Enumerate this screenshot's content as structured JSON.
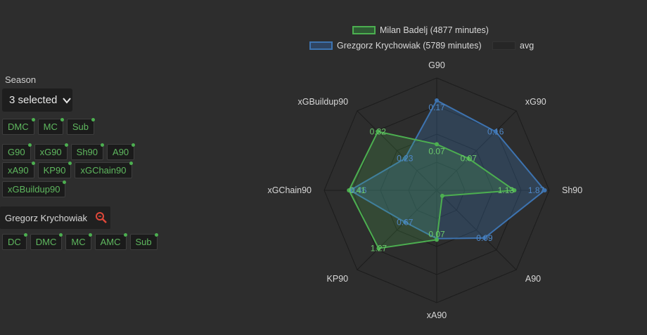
{
  "filters": {
    "season_label": "Season",
    "season_value": "3 selected",
    "position_chips_1": [
      "DMC",
      "MC",
      "Sub"
    ],
    "stat_chips_row1": [
      "G90",
      "xG90",
      "Sh90",
      "A90"
    ],
    "stat_chips_row2": [
      "xA90",
      "KP90",
      "xGChain90"
    ],
    "stat_chips_row3": [
      "xGBuildup90"
    ],
    "player_search": "Gregorz Krychowiak",
    "position_chips_2": [
      "DC",
      "DMC",
      "MC",
      "AMC",
      "Sub"
    ]
  },
  "colors": {
    "series1": "#4caf50",
    "series2": "#3d73b0",
    "chip_text": "#5fb85f",
    "background": "#2d2d2d"
  },
  "chart_data": {
    "type": "radar",
    "axes": [
      "G90",
      "xG90",
      "Sh90",
      "A90",
      "xA90",
      "KP90",
      "xGChain90",
      "xGBuildup90"
    ],
    "series": [
      {
        "name": "Milan Badelj (4877 minutes)",
        "color": "#4caf50",
        "normalized": [
          0.41,
          0.4,
          0.69,
          0.07,
          0.44,
          0.73,
          0.78,
          0.74
        ],
        "labels": [
          "0.07",
          "0.07",
          "1.13",
          "",
          "0.07",
          "1.27",
          "0.41",
          "0.32"
        ]
      },
      {
        "name": "Grezgorz Krychowiak (5789 minutes)",
        "color": "#3d73b0",
        "normalized": [
          0.8,
          0.74,
          0.96,
          0.6,
          0.43,
          0.4,
          0.77,
          0.4
        ],
        "labels": [
          "0.17",
          "0.16",
          "1.87",
          "0.09",
          "",
          "0.67",
          "0.46",
          "0.23"
        ]
      }
    ],
    "legend": [
      {
        "name": "Milan Badelj (4877 minutes)",
        "style": "green"
      },
      {
        "name": "Grezgorz Krychowiak (5789 minutes)",
        "style": "blue"
      },
      {
        "name": "avg",
        "style": "dark"
      }
    ]
  }
}
